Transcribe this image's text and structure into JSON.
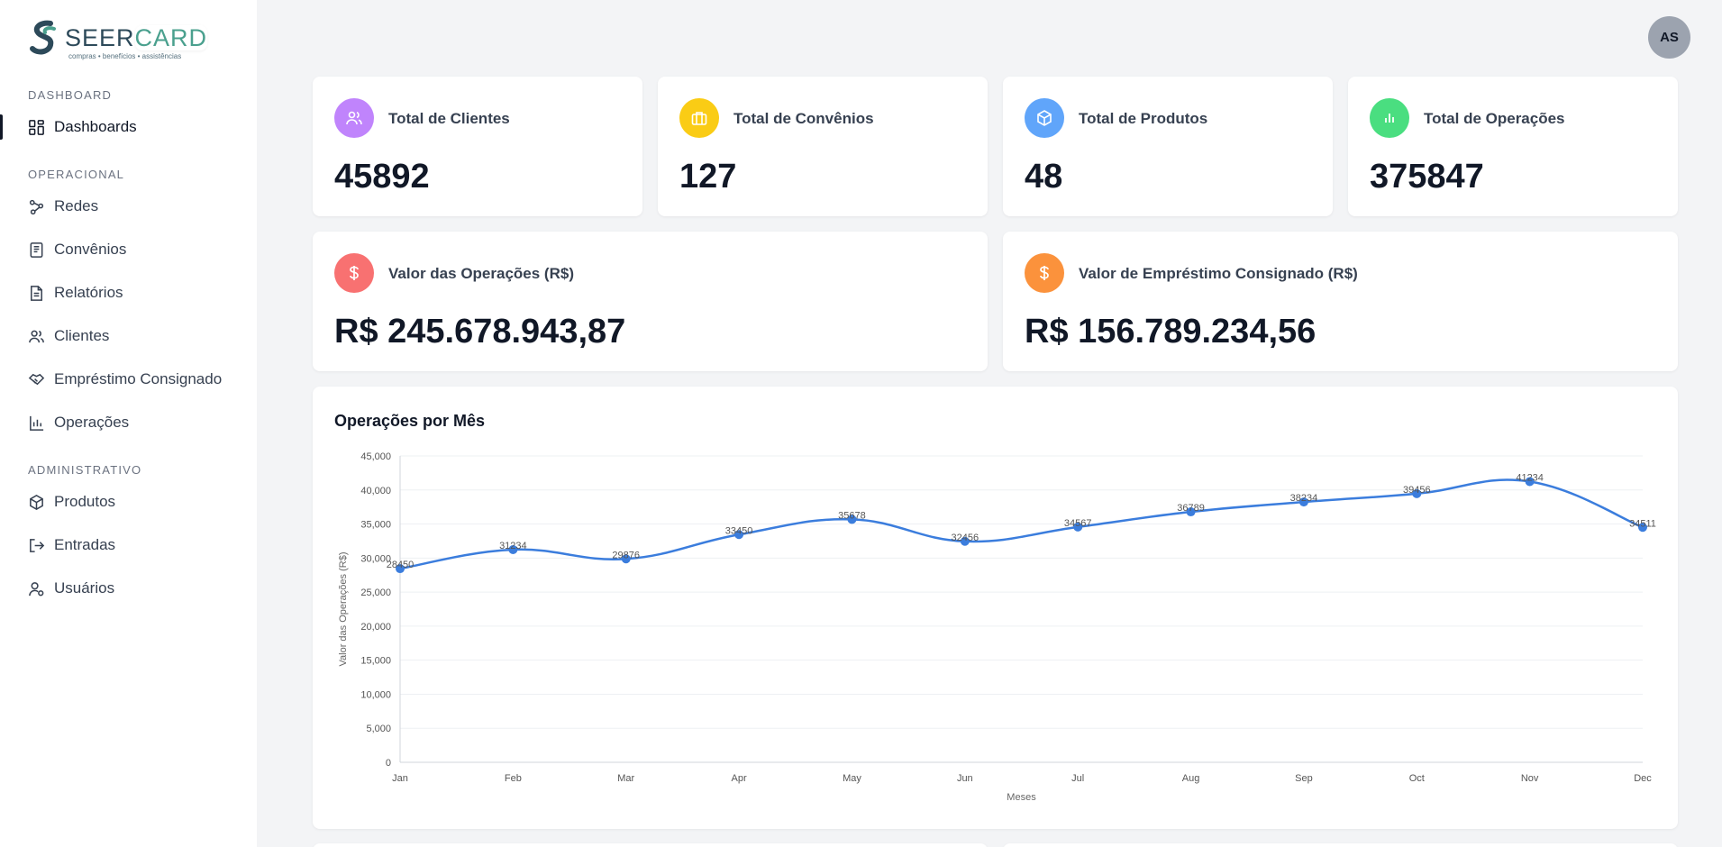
{
  "brand": {
    "name_a": "SEER",
    "name_b": "CARD",
    "tagline": "compras • benefícios • assistências"
  },
  "sidebar": {
    "sections": [
      {
        "title": "DASHBOARD",
        "items": [
          {
            "label": "Dashboards",
            "icon": "dashboard-icon"
          }
        ]
      },
      {
        "title": "OPERACIONAL",
        "items": [
          {
            "label": "Redes",
            "icon": "network-icon"
          },
          {
            "label": "Convênios",
            "icon": "agreement-icon"
          },
          {
            "label": "Relatórios",
            "icon": "report-icon"
          },
          {
            "label": "Clientes",
            "icon": "users-icon"
          },
          {
            "label": "Empréstimo Consignado",
            "icon": "handshake-icon"
          },
          {
            "label": "Operações",
            "icon": "operations-icon"
          }
        ]
      },
      {
        "title": "ADMINISTRATIVO",
        "items": [
          {
            "label": "Produtos",
            "icon": "box-icon"
          },
          {
            "label": "Entradas",
            "icon": "login-icon"
          },
          {
            "label": "Usuários",
            "icon": "user-icon"
          }
        ]
      }
    ]
  },
  "user": {
    "initials": "AS"
  },
  "stats": [
    {
      "label": "Total de Clientes",
      "value": "45892",
      "color": "#c084fc",
      "icon": "users-icon"
    },
    {
      "label": "Total de Convênios",
      "value": "127",
      "color": "#facc15",
      "icon": "briefcase-icon"
    },
    {
      "label": "Total de Produtos",
      "value": "48",
      "color": "#60a5fa",
      "icon": "box-icon"
    },
    {
      "label": "Total de Operações",
      "value": "375847",
      "color": "#4ade80",
      "icon": "bar-chart-icon"
    }
  ],
  "money": [
    {
      "label": "Valor das Operações (R$)",
      "value": "R$ 245.678.943,87",
      "color": "#f87171",
      "icon": "dollar-icon"
    },
    {
      "label": "Valor de Empréstimo Consignado (R$)",
      "value": "R$ 156.789.234,56",
      "color": "#fb923c",
      "icon": "dollar-icon"
    }
  ],
  "chart_title": "Operações por Mês",
  "chart_data": {
    "type": "line",
    "title": "Operações por Mês",
    "xlabel": "Meses",
    "ylabel": "Valor das Operações (R$)",
    "categories": [
      "Jan",
      "Feb",
      "Mar",
      "Apr",
      "May",
      "Jun",
      "Jul",
      "Aug",
      "Sep",
      "Oct",
      "Nov",
      "Dec"
    ],
    "values": [
      28450,
      31234,
      29876,
      33450,
      35678,
      32456,
      34567,
      36789,
      38234,
      39456,
      41234,
      34511
    ],
    "yticks": [
      "0",
      "5,000",
      "10,000",
      "15,000",
      "20,000",
      "25,000",
      "30,000",
      "35,000",
      "40,000",
      "45,000"
    ],
    "ylim": [
      0,
      45000
    ],
    "line_color": "#3b7ddd",
    "grid": true
  }
}
